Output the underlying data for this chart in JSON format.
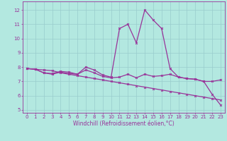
{
  "title": "",
  "xlabel": "Windchill (Refroidissement éolien,°C)",
  "ylabel": "",
  "bg_color": "#b3e8e0",
  "line_color": "#993399",
  "grid_color": "#99cccc",
  "xlim": [
    -0.5,
    23.5
  ],
  "ylim": [
    4.8,
    12.6
  ],
  "yticks": [
    5,
    6,
    7,
    8,
    9,
    10,
    11,
    12
  ],
  "xticks": [
    0,
    1,
    2,
    3,
    4,
    5,
    6,
    7,
    8,
    9,
    10,
    11,
    12,
    13,
    14,
    15,
    16,
    17,
    18,
    19,
    20,
    21,
    22,
    23
  ],
  "series": [
    {
      "x": [
        0,
        1,
        2,
        3,
        4,
        5,
        6,
        7,
        8,
        9,
        10,
        11,
        12,
        13,
        14,
        15,
        16,
        17,
        18,
        19,
        20,
        21,
        22,
        23
      ],
      "y": [
        7.9,
        7.85,
        7.8,
        7.75,
        7.6,
        7.5,
        7.4,
        7.3,
        7.2,
        7.1,
        7.0,
        6.9,
        6.8,
        6.7,
        6.6,
        6.5,
        6.4,
        6.3,
        6.2,
        6.1,
        6.0,
        5.9,
        5.8,
        5.7
      ]
    },
    {
      "x": [
        0,
        1,
        2,
        3,
        4,
        5,
        6,
        7,
        8,
        9,
        10,
        11,
        12,
        13,
        14,
        15,
        16,
        17,
        18,
        19,
        20,
        21,
        22,
        23
      ],
      "y": [
        7.9,
        7.85,
        7.6,
        7.55,
        7.7,
        7.65,
        7.5,
        8.0,
        7.8,
        7.45,
        7.3,
        10.7,
        11.0,
        9.7,
        12.0,
        11.3,
        10.7,
        7.9,
        7.3,
        7.2,
        7.15,
        7.0,
        6.1,
        5.35
      ]
    },
    {
      "x": [
        0,
        1,
        2,
        3,
        4,
        5,
        6,
        7,
        8,
        9,
        10,
        11,
        12,
        13,
        14,
        15,
        16,
        17,
        18,
        19,
        20,
        21,
        22,
        23
      ],
      "y": [
        7.9,
        7.85,
        7.6,
        7.5,
        7.65,
        7.55,
        7.5,
        7.8,
        7.6,
        7.35,
        7.25,
        7.3,
        7.5,
        7.25,
        7.5,
        7.35,
        7.4,
        7.5,
        7.3,
        7.2,
        7.15,
        7.0,
        7.0,
        7.1
      ]
    }
  ],
  "tick_fontsize": 5.0,
  "xlabel_fontsize": 5.5,
  "marker_size": 2.0,
  "linewidth": 0.9
}
